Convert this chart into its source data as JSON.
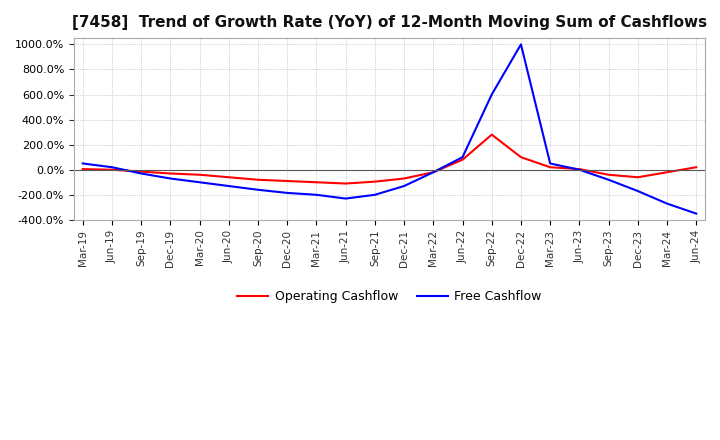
{
  "title": "[7458]  Trend of Growth Rate (YoY) of 12-Month Moving Sum of Cashflows",
  "title_fontsize": 11,
  "ylim": [
    -400,
    1050
  ],
  "yticks": [
    -400,
    -200,
    0,
    200,
    400,
    600,
    800,
    1000
  ],
  "background_color": "#ffffff",
  "operating_color": "#ff0000",
  "free_color": "#0000ff",
  "x_labels": [
    "Mar-19",
    "Jun-19",
    "Sep-19",
    "Dec-19",
    "Mar-20",
    "Jun-20",
    "Sep-20",
    "Dec-20",
    "Mar-21",
    "Jun-21",
    "Sep-21",
    "Dec-21",
    "Mar-22",
    "Jun-22",
    "Sep-22",
    "Dec-22",
    "Mar-23",
    "Jun-23",
    "Sep-23",
    "Dec-23",
    "Mar-24",
    "Jun-24"
  ],
  "operating_cashflow": [
    5,
    0,
    -15,
    -30,
    -40,
    -60,
    -80,
    -90,
    -100,
    -110,
    -95,
    -70,
    -20,
    80,
    280,
    100,
    20,
    5,
    -40,
    -60,
    -20,
    20
  ],
  "free_cashflow": [
    50,
    20,
    -30,
    -70,
    -100,
    -130,
    -160,
    -185,
    -200,
    -230,
    -200,
    -130,
    -20,
    100,
    600,
    1000,
    50,
    0,
    -80,
    -170,
    -270,
    -350
  ]
}
